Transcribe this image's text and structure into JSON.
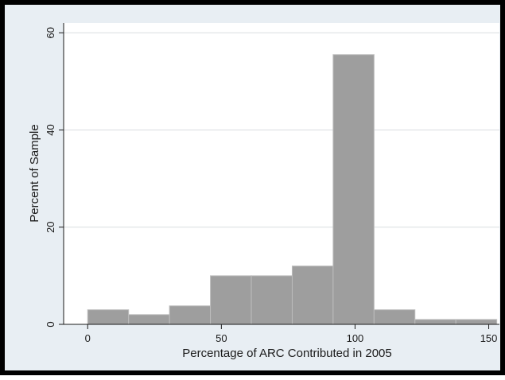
{
  "chart_data": {
    "type": "bar",
    "subtype": "histogram",
    "xlabel": "Percentage of ARC Contributed in 2005",
    "ylabel": "Percent of Sample",
    "xlim": [
      -9,
      154
    ],
    "ylim": [
      0,
      62
    ],
    "x_ticks": [
      0,
      50,
      100,
      150
    ],
    "y_ticks": [
      0,
      20,
      40,
      60
    ],
    "grid": true,
    "bins": [
      {
        "x0": 0,
        "x1": 15.3,
        "value": 3
      },
      {
        "x0": 15.3,
        "x1": 30.6,
        "value": 2
      },
      {
        "x0": 30.6,
        "x1": 45.9,
        "value": 3.8
      },
      {
        "x0": 45.9,
        "x1": 61.2,
        "value": 10
      },
      {
        "x0": 61.2,
        "x1": 76.5,
        "value": 10
      },
      {
        "x0": 76.5,
        "x1": 91.8,
        "value": 12
      },
      {
        "x0": 91.8,
        "x1": 107.1,
        "value": 55.5
      },
      {
        "x0": 107.1,
        "x1": 122.4,
        "value": 3
      },
      {
        "x0": 122.4,
        "x1": 137.7,
        "value": 1
      },
      {
        "x0": 137.7,
        "x1": 153,
        "value": 1
      }
    ],
    "colors": {
      "bar_fill": "#9e9e9e",
      "bar_stroke": "#bdbdbd",
      "plot_bg": "#ffffff",
      "outer_bg": "#e8eef3",
      "grid": "#d9dde0",
      "axis": "#1a1a1a"
    }
  }
}
